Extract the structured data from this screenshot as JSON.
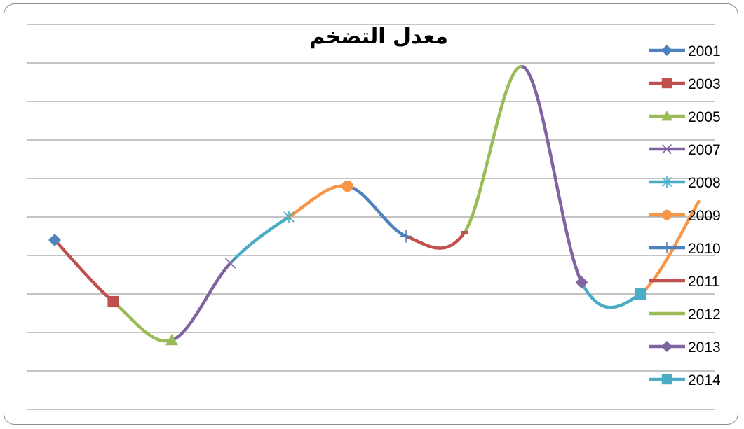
{
  "chart_data": {
    "type": "line",
    "title": "معدل التضخم",
    "grid": true,
    "legend_position": "right",
    "smooth": true,
    "ylim": [
      0,
      10
    ],
    "y": [
      4.4,
      2.8,
      1.8,
      3.8,
      5.0,
      5.8,
      4.5,
      4.6,
      8.9,
      3.3,
      3.0,
      5.4
    ],
    "series": [
      {
        "name": "2001",
        "color": "#4f81bd",
        "marker": "diamond"
      },
      {
        "name": "2003",
        "color": "#c0504d",
        "marker": "square"
      },
      {
        "name": "2005",
        "color": "#9bbb59",
        "marker": "triangle"
      },
      {
        "name": "2007",
        "color": "#8064a2",
        "marker": "x"
      },
      {
        "name": "2008",
        "color": "#4bacc6",
        "marker": "star"
      },
      {
        "name": "2009",
        "color": "#f79646",
        "marker": "circle"
      },
      {
        "name": "2010",
        "color": "#4f81bd",
        "marker": "plus"
      },
      {
        "name": "2011",
        "color": "#c0504d",
        "marker": "dash"
      },
      {
        "name": "2012",
        "color": "#9bbb59",
        "marker": "none"
      },
      {
        "name": "2013",
        "color": "#8064a2",
        "marker": "diamond"
      },
      {
        "name": "2014",
        "color": "#4bacc6",
        "marker": "square"
      }
    ]
  }
}
